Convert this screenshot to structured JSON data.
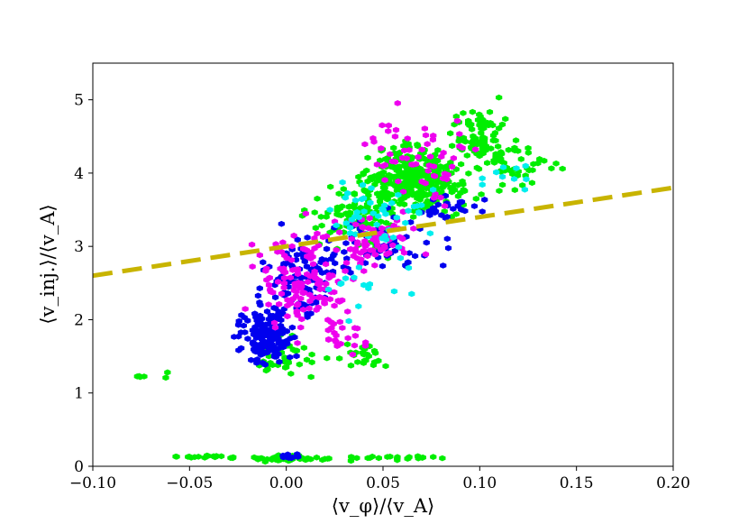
{
  "chart_data": {
    "type": "scatter",
    "xlabel": "⟨v_φ⟩/⟨v_A⟩",
    "ylabel": "⟨v_inj.⟩/⟨v_A⟩",
    "xlim": [
      -0.1,
      0.2
    ],
    "ylim": [
      0,
      5.5
    ],
    "xticks": [
      -0.1,
      -0.05,
      0.0,
      0.05,
      0.1,
      0.15,
      0.2
    ],
    "xtick_labels": [
      "−0.10",
      "−0.05",
      "0.00",
      "0.05",
      "0.10",
      "0.15",
      "0.20"
    ],
    "yticks": [
      0,
      1,
      2,
      3,
      4,
      5
    ],
    "ytick_labels": [
      "0",
      "1",
      "2",
      "3",
      "4",
      "5"
    ],
    "grid": false,
    "fit_line": {
      "color": "#c8b400",
      "style": "dashed",
      "x": [
        -0.1,
        0.2
      ],
      "y": [
        2.6,
        3.8
      ]
    },
    "series": [
      {
        "color": "#00ee00",
        "clusters": [
          {
            "cx": 0.065,
            "cy": 3.9,
            "sx": 0.022,
            "sy": 0.33,
            "n": 330
          },
          {
            "cx": 0.1,
            "cy": 4.5,
            "sx": 0.012,
            "sy": 0.35,
            "n": 90
          },
          {
            "cx": 0.035,
            "cy": 3.4,
            "sx": 0.02,
            "sy": 0.3,
            "n": 90
          },
          {
            "cx": 0.12,
            "cy": 4.1,
            "sx": 0.02,
            "sy": 0.25,
            "n": 40
          },
          {
            "cx": 0.0,
            "cy": 1.5,
            "sx": 0.012,
            "sy": 0.25,
            "n": 40
          },
          {
            "cx": 0.04,
            "cy": 1.5,
            "sx": 0.012,
            "sy": 0.2,
            "n": 25
          },
          {
            "cx": 0.0,
            "cy": 0.1,
            "sx": 0.018,
            "sy": 0.03,
            "n": 55
          },
          {
            "cx": -0.045,
            "cy": 0.13,
            "sx": 0.02,
            "sy": 0.02,
            "n": 18
          },
          {
            "cx": 0.06,
            "cy": 0.12,
            "sx": 0.02,
            "sy": 0.02,
            "n": 20
          },
          {
            "cx": -0.07,
            "cy": 1.25,
            "sx": 0.008,
            "sy": 0.1,
            "n": 6
          }
        ]
      },
      {
        "color": "#0000ee",
        "clusters": [
          {
            "cx": -0.01,
            "cy": 1.8,
            "sx": 0.011,
            "sy": 0.35,
            "n": 170
          },
          {
            "cx": 0.01,
            "cy": 2.6,
            "sx": 0.018,
            "sy": 0.45,
            "n": 90
          },
          {
            "cx": 0.05,
            "cy": 3.0,
            "sx": 0.025,
            "sy": 0.35,
            "n": 60
          },
          {
            "cx": 0.085,
            "cy": 3.5,
            "sx": 0.012,
            "sy": 0.15,
            "n": 25
          },
          {
            "cx": 0.0,
            "cy": 0.13,
            "sx": 0.012,
            "sy": 0.03,
            "n": 10
          }
        ]
      },
      {
        "color": "#ee00ee",
        "clusters": [
          {
            "cx": 0.01,
            "cy": 2.5,
            "sx": 0.02,
            "sy": 0.5,
            "n": 130
          },
          {
            "cx": 0.045,
            "cy": 3.1,
            "sx": 0.02,
            "sy": 0.3,
            "n": 70
          },
          {
            "cx": 0.07,
            "cy": 4.2,
            "sx": 0.025,
            "sy": 0.45,
            "n": 60
          },
          {
            "cx": 0.03,
            "cy": 1.8,
            "sx": 0.015,
            "sy": 0.2,
            "n": 20
          }
        ]
      },
      {
        "color": "#00eeee",
        "clusters": [
          {
            "cx": 0.05,
            "cy": 3.4,
            "sx": 0.03,
            "sy": 0.45,
            "n": 50
          },
          {
            "cx": 0.04,
            "cy": 2.3,
            "sx": 0.02,
            "sy": 0.3,
            "n": 12
          },
          {
            "cx": 0.12,
            "cy": 4.0,
            "sx": 0.015,
            "sy": 0.15,
            "n": 10
          }
        ]
      }
    ]
  }
}
